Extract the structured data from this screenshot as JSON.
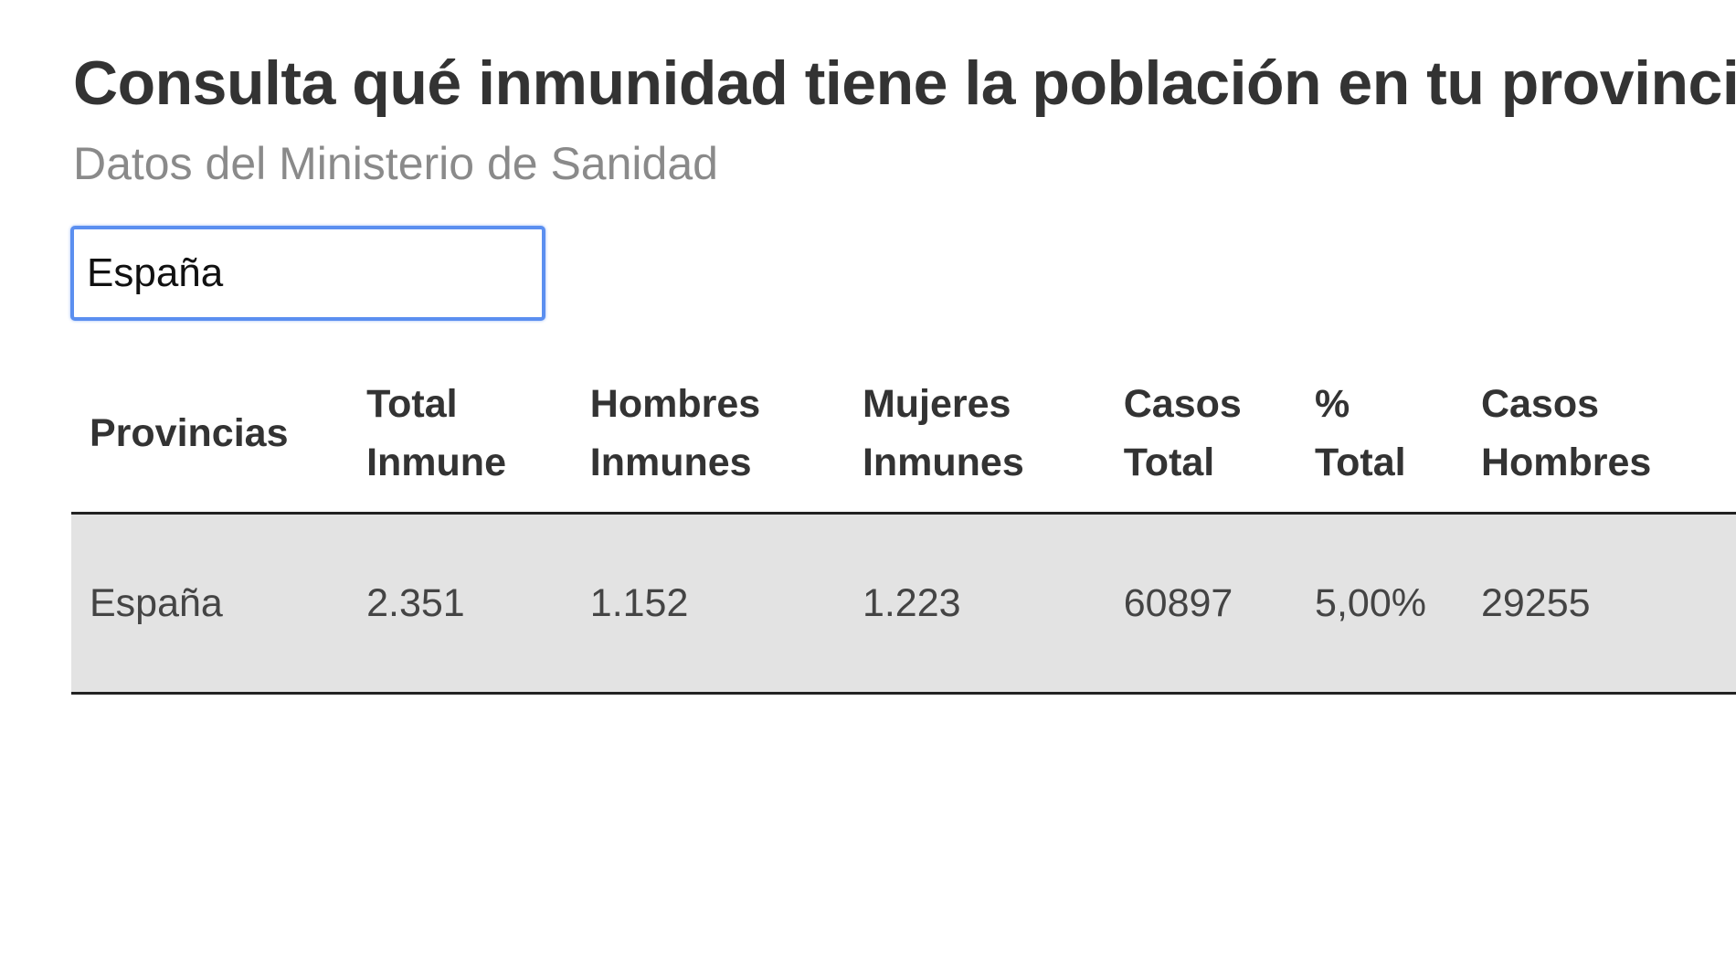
{
  "header": {
    "title": "Consulta qué inmunidad tiene la población en tu provincia",
    "subtitle": "Datos del Ministerio de Sanidad"
  },
  "search": {
    "value": "España"
  },
  "colors": {
    "input_focus_border": "#5b8ff0",
    "row_background": "#e3e3e3"
  },
  "table": {
    "columns": [
      {
        "line1": "Provincias",
        "line2": ""
      },
      {
        "line1": "Total",
        "line2": "Inmune"
      },
      {
        "line1": "Hombres",
        "line2": "Inmunes"
      },
      {
        "line1": "Mujeres",
        "line2": "Inmunes"
      },
      {
        "line1": "Casos",
        "line2": "Total"
      },
      {
        "line1": "%",
        "line2": "Total"
      },
      {
        "line1": "Casos",
        "line2": "Hombres"
      }
    ],
    "rows": [
      [
        "España",
        "2.351",
        "1.152",
        "1.223",
        "60897",
        "5,00%",
        "29255"
      ]
    ]
  }
}
